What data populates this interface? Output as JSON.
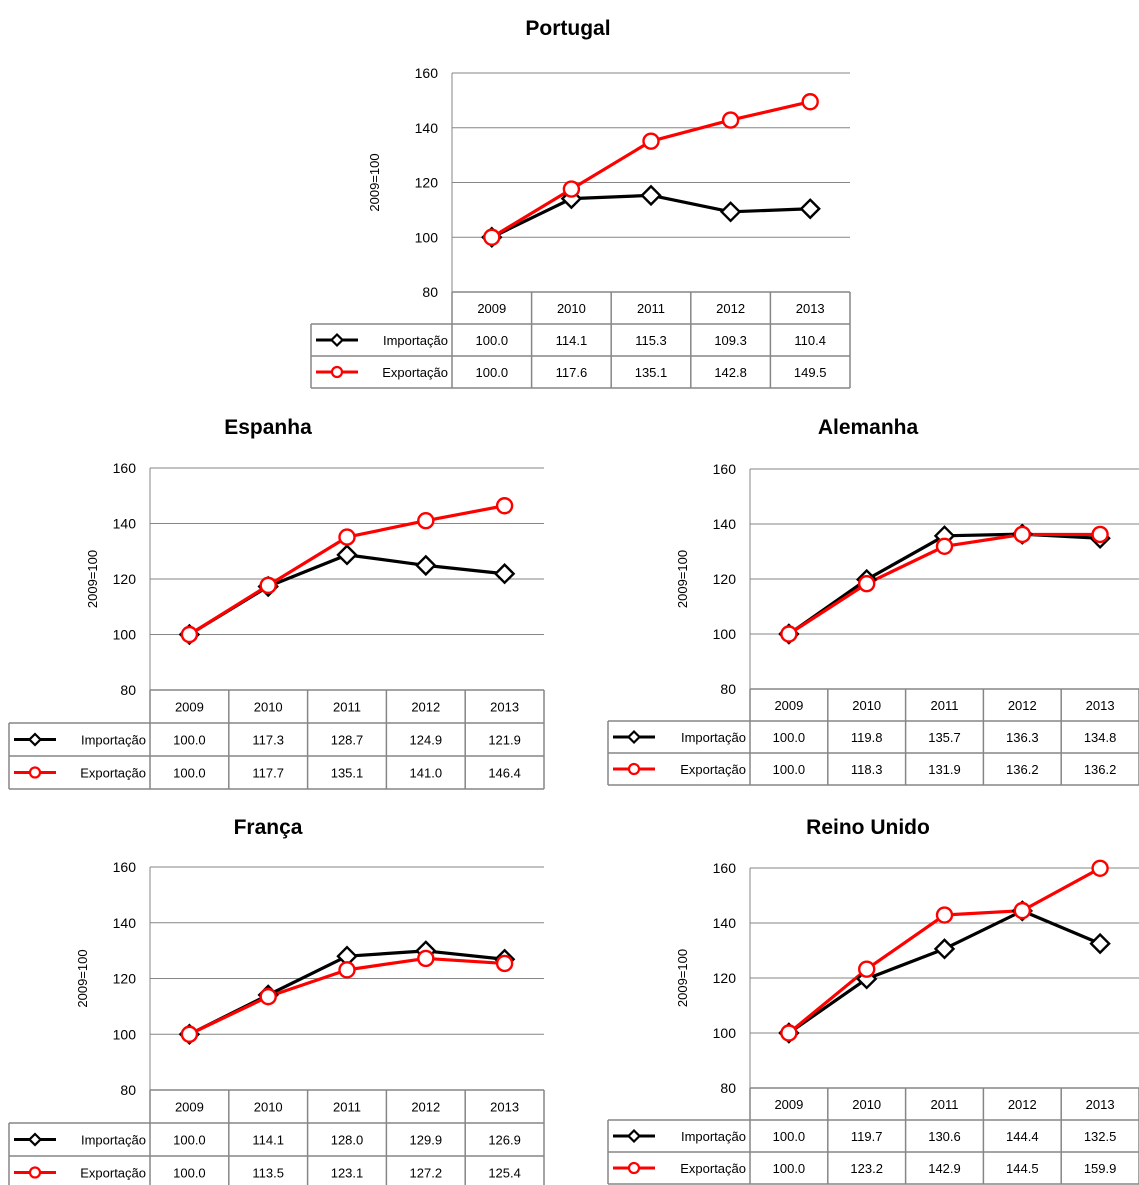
{
  "chart_data": [
    {
      "type": "line",
      "title": "Portugal",
      "ylabel": "2009=100",
      "ylim": [
        80,
        160
      ],
      "yticks": [
        80,
        100,
        120,
        140,
        160
      ],
      "categories": [
        "2009",
        "2010",
        "2011",
        "2012",
        "2013"
      ],
      "grid": true,
      "legend": "data-table",
      "series": [
        {
          "name": "Importação",
          "color": "#000000",
          "marker": "diamond",
          "values": [
            100.0,
            114.1,
            115.3,
            109.3,
            110.4
          ],
          "labels": [
            "100.0",
            "114.1",
            "115.3",
            "109.3",
            "110.4"
          ]
        },
        {
          "name": "Exportação",
          "color": "#ff0000",
          "marker": "circle",
          "values": [
            100.0,
            117.6,
            135.1,
            142.8,
            149.5
          ],
          "labels": [
            "100.0",
            "117.6",
            "135.1",
            "142.8",
            "149.5"
          ]
        }
      ]
    },
    {
      "type": "line",
      "title": "Espanha",
      "ylabel": "2009=100",
      "ylim": [
        80,
        160
      ],
      "yticks": [
        80,
        100,
        120,
        140,
        160
      ],
      "categories": [
        "2009",
        "2010",
        "2011",
        "2012",
        "2013"
      ],
      "grid": true,
      "legend": "data-table",
      "series": [
        {
          "name": "Importação",
          "color": "#000000",
          "marker": "diamond",
          "values": [
            100.0,
            117.3,
            128.7,
            124.9,
            121.9
          ],
          "labels": [
            "100.0",
            "117.3",
            "128.7",
            "124.9",
            "121.9"
          ]
        },
        {
          "name": "Exportação",
          "color": "#ff0000",
          "marker": "circle",
          "values": [
            100.0,
            117.7,
            135.1,
            141.0,
            146.4
          ],
          "labels": [
            "100.0",
            "117.7",
            "135.1",
            "141.0",
            "146.4"
          ]
        }
      ]
    },
    {
      "type": "line",
      "title": "Alemanha",
      "ylabel": "2009=100",
      "ylim": [
        80,
        160
      ],
      "yticks": [
        80,
        100,
        120,
        140,
        160
      ],
      "categories": [
        "2009",
        "2010",
        "2011",
        "2012",
        "2013"
      ],
      "grid": true,
      "legend": "data-table",
      "series": [
        {
          "name": "Importação",
          "color": "#000000",
          "marker": "diamond",
          "values": [
            100.0,
            119.8,
            135.7,
            136.3,
            134.8
          ],
          "labels": [
            "100.0",
            "119.8",
            "135.7",
            "136.3",
            "134.8"
          ]
        },
        {
          "name": "Exportação",
          "color": "#ff0000",
          "marker": "circle",
          "values": [
            100.0,
            118.3,
            131.9,
            136.2,
            136.2
          ],
          "labels": [
            "100.0",
            "118.3",
            "131.9",
            "136.2",
            "136.2"
          ]
        }
      ]
    },
    {
      "type": "line",
      "title": "França",
      "ylabel": "2009=100",
      "ylim": [
        80,
        160
      ],
      "yticks": [
        80,
        100,
        120,
        140,
        160
      ],
      "categories": [
        "2009",
        "2010",
        "2011",
        "2012",
        "2013"
      ],
      "grid": true,
      "legend": "data-table",
      "series": [
        {
          "name": "Importação",
          "color": "#000000",
          "marker": "diamond",
          "values": [
            100.0,
            114.1,
            128.0,
            129.9,
            126.9
          ],
          "labels": [
            "100.0",
            "114.1",
            "128.0",
            "129.9",
            "126.9"
          ]
        },
        {
          "name": "Exportação",
          "color": "#ff0000",
          "marker": "circle",
          "values": [
            100.0,
            113.5,
            123.1,
            127.2,
            125.4
          ],
          "labels": [
            "100.0",
            "113.5",
            "123.1",
            "127.2",
            "125.4"
          ]
        }
      ]
    },
    {
      "type": "line",
      "title": "Reino Unido",
      "ylabel": "2009=100",
      "ylim": [
        80,
        160
      ],
      "yticks": [
        80,
        100,
        120,
        140,
        160
      ],
      "categories": [
        "2009",
        "2010",
        "2011",
        "2012",
        "2013"
      ],
      "grid": true,
      "legend": "data-table",
      "series": [
        {
          "name": "Importação",
          "color": "#000000",
          "marker": "diamond",
          "values": [
            100.0,
            119.7,
            130.6,
            144.4,
            132.5
          ],
          "labels": [
            "100.0",
            "119.7",
            "130.6",
            "144.4",
            "132.5"
          ]
        },
        {
          "name": "Exportação",
          "color": "#ff0000",
          "marker": "circle",
          "values": [
            100.0,
            123.2,
            142.9,
            144.5,
            159.9
          ],
          "labels": [
            "100.0",
            "123.2",
            "142.9",
            "144.5",
            "159.9"
          ]
        }
      ]
    }
  ]
}
